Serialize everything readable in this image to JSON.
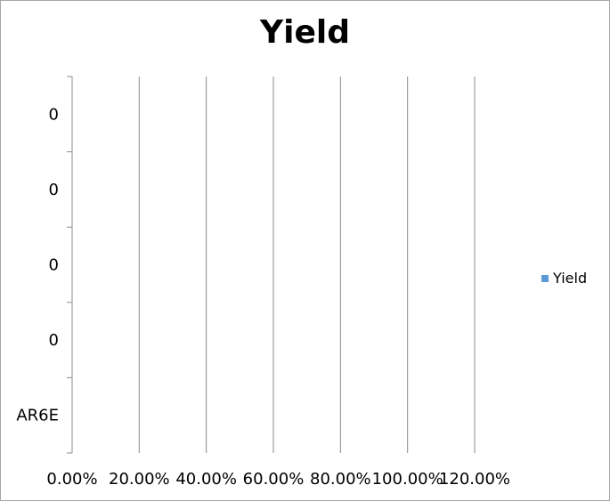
{
  "chart_data": {
    "type": "bar",
    "orientation": "horizontal",
    "title": "Yield",
    "categories": [
      "AR6E",
      "0",
      "0",
      "0",
      "0"
    ],
    "series": [
      {
        "name": "Yield",
        "values": [
          0,
          0,
          0,
          0,
          0
        ],
        "color": "#5b9bd5"
      }
    ],
    "x_ticks": [
      "0.00%",
      "20.00%",
      "40.00%",
      "60.00%",
      "80.00%",
      "100.00%",
      "120.00%"
    ],
    "xlim": [
      0,
      1.2
    ],
    "grid": "vertical",
    "legend_position": "right"
  }
}
